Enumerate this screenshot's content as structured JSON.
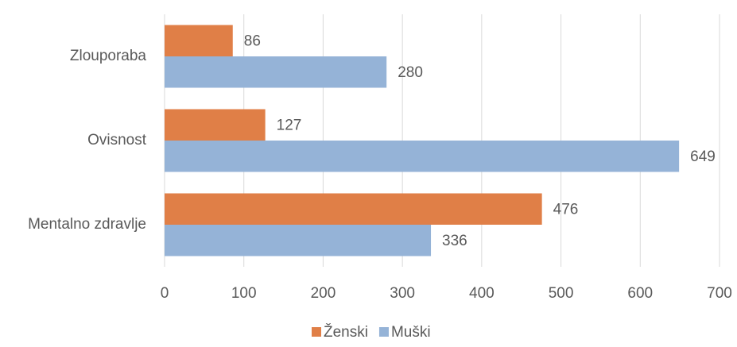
{
  "chart_data": {
    "type": "hbar",
    "categories": [
      "Zlouporaba",
      "Ovisnost",
      "Mentalno zdravlje"
    ],
    "series": [
      {
        "name": "Ženski",
        "color": "#e07f47",
        "values": [
          86,
          127,
          476
        ]
      },
      {
        "name": "Muški",
        "color": "#95b3d7",
        "values": [
          280,
          649,
          336
        ]
      }
    ],
    "xlim": [
      0,
      700
    ],
    "xticks": [
      0,
      100,
      200,
      300,
      400,
      500,
      600,
      700
    ],
    "grid": true,
    "legend": "bottom"
  }
}
